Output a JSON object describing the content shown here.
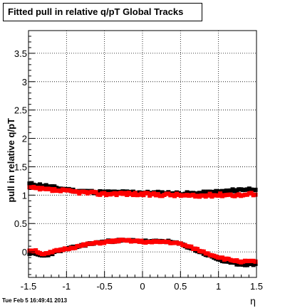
{
  "title": "Fitted pull in relative q/pT  Global Tracks",
  "timestamp": "Tue Feb  5 16:49:41 2013",
  "chart_data": {
    "type": "scatter",
    "title": "Fitted pull in relative q/pT  Global Tracks",
    "xlabel": "η",
    "ylabel": "pull in relative q/pT",
    "xlim": [
      -1.5,
      1.5
    ],
    "ylim": [
      -0.45,
      3.9
    ],
    "x_ticks": [
      -1.5,
      -1,
      -0.5,
      0,
      0.5,
      1,
      1.5
    ],
    "x_tick_labels": [
      "-1.5",
      "-1",
      "-0.5",
      "0",
      "0.5",
      "1",
      "1.5"
    ],
    "y_ticks": [
      0,
      0.5,
      1,
      1.5,
      2,
      2.5,
      3,
      3.5
    ],
    "y_tick_labels": [
      "0",
      "0.5",
      "1",
      "1.5",
      "2",
      "2.5",
      "3",
      "3.5"
    ],
    "grid": true,
    "series": [
      {
        "color": "#000000",
        "knots_x": [
          -1.5,
          -1.3,
          -1.1,
          -0.9,
          -0.7,
          -0.5,
          -0.3,
          -0.1,
          0.1,
          0.3,
          0.5,
          0.7,
          0.9,
          1.1,
          1.3,
          1.5
        ],
        "knots_y": [
          1.2,
          1.17,
          1.12,
          1.08,
          1.06,
          1.05,
          1.05,
          1.05,
          1.04,
          1.04,
          1.03,
          1.03,
          1.05,
          1.07,
          1.1,
          1.11
        ],
        "jitter": 0.02,
        "n": 110,
        "seed": 11
      },
      {
        "color": "#000000",
        "knots_x": [
          -1.5,
          -1.4,
          -1.3,
          -1.2,
          -1.1,
          -0.9,
          -0.7,
          -0.5,
          -0.3,
          -0.1,
          0.1,
          0.3,
          0.5,
          0.7,
          0.9,
          1.1,
          1.3,
          1.5
        ],
        "knots_y": [
          -0.02,
          -0.04,
          -0.07,
          -0.03,
          0.02,
          0.08,
          0.14,
          0.18,
          0.2,
          0.2,
          0.18,
          0.19,
          0.14,
          0.03,
          -0.08,
          -0.18,
          -0.22,
          -0.22
        ],
        "jitter": 0.015,
        "n": 110,
        "seed": 23
      },
      {
        "color": "#ff0000",
        "knots_x": [
          -1.5,
          -1.3,
          -1.1,
          -0.9,
          -0.7,
          -0.5,
          -0.3,
          -0.1,
          0.1,
          0.3,
          0.5,
          0.7,
          0.9,
          1.1,
          1.3,
          1.5
        ],
        "knots_y": [
          1.13,
          1.1,
          1.08,
          1.06,
          1.04,
          1.02,
          1.03,
          1.02,
          1.01,
          1.01,
          1.0,
          0.98,
          1.0,
          1.01,
          1.0,
          1.03
        ],
        "jitter": 0.025,
        "n": 110,
        "seed": 37
      },
      {
        "color": "#ff0000",
        "knots_x": [
          -1.5,
          -1.4,
          -1.3,
          -1.2,
          -1.1,
          -0.9,
          -0.7,
          -0.5,
          -0.3,
          -0.1,
          0.1,
          0.3,
          0.5,
          0.7,
          0.9,
          1.1,
          1.3,
          1.5
        ],
        "knots_y": [
          0.03,
          0.02,
          -0.05,
          -0.01,
          0.03,
          0.08,
          0.14,
          0.17,
          0.2,
          0.19,
          0.17,
          0.18,
          0.14,
          0.05,
          -0.05,
          -0.13,
          -0.17,
          -0.17
        ],
        "jitter": 0.015,
        "n": 110,
        "seed": 51
      }
    ]
  }
}
